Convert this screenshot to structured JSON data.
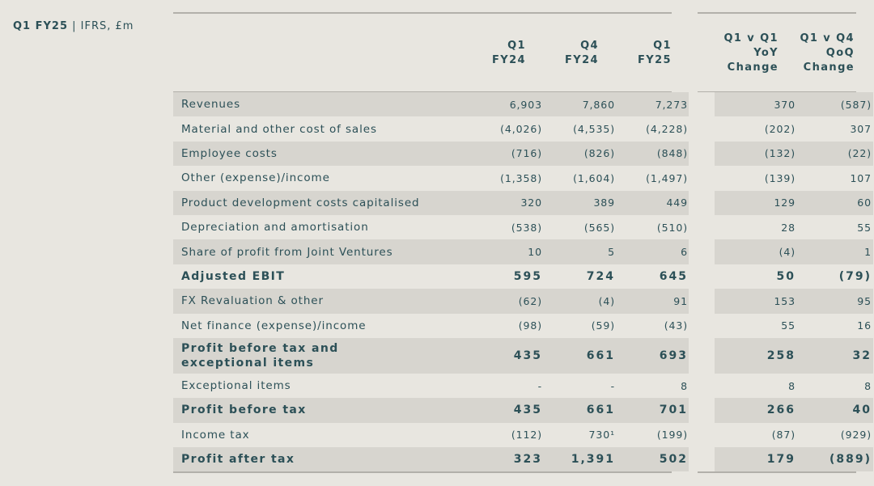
{
  "corner": {
    "bold": "Q1 FY25",
    "sep": " | ",
    "rest": "IFRS, £m"
  },
  "columns": [
    "Q1\nFY24",
    "Q4\nFY24",
    "Q1\nFY25",
    "Q1 v Q1\nYoY\nChange",
    "Q1 v Q4\nQoQ\nChange"
  ],
  "rows": [
    {
      "label": "Revenues",
      "v": [
        "6,903",
        "7,860",
        "7,273",
        "370",
        "(587)"
      ],
      "bold": false,
      "shade": true
    },
    {
      "label": "Material and other cost of sales",
      "v": [
        "(4,026)",
        "(4,535)",
        "(4,228)",
        "(202)",
        "307"
      ],
      "bold": false,
      "shade": false
    },
    {
      "label": "Employee costs",
      "v": [
        "(716)",
        "(826)",
        "(848)",
        "(132)",
        "(22)"
      ],
      "bold": false,
      "shade": true
    },
    {
      "label": "Other (expense)/income",
      "v": [
        "(1,358)",
        "(1,604)",
        "(1,497)",
        "(139)",
        "107"
      ],
      "bold": false,
      "shade": false
    },
    {
      "label": "Product development costs capitalised",
      "v": [
        "320",
        "389",
        "449",
        "129",
        "60"
      ],
      "bold": false,
      "shade": true
    },
    {
      "label": "Depreciation and amortisation",
      "v": [
        "(538)",
        "(565)",
        "(510)",
        "28",
        "55"
      ],
      "bold": false,
      "shade": false
    },
    {
      "label": "Share of profit from Joint Ventures",
      "v": [
        "10",
        "5",
        "6",
        "(4)",
        "1"
      ],
      "bold": false,
      "shade": true
    },
    {
      "label": "Adjusted EBIT",
      "v": [
        "595",
        "724",
        "645",
        "50",
        "(79)"
      ],
      "bold": true,
      "shade": false
    },
    {
      "label": "FX Revaluation & other",
      "v": [
        "(62)",
        "(4)",
        "91",
        "153",
        "95"
      ],
      "bold": false,
      "shade": true
    },
    {
      "label": "Net finance (expense)/income",
      "v": [
        "(98)",
        "(59)",
        "(43)",
        "55",
        "16"
      ],
      "bold": false,
      "shade": false
    },
    {
      "label": "Profit before tax and exceptional items",
      "v": [
        "435",
        "661",
        "693",
        "258",
        "32"
      ],
      "bold": true,
      "shade": true,
      "tall": true
    },
    {
      "label": "Exceptional items",
      "v": [
        "-",
        "-",
        "8",
        "8",
        "8"
      ],
      "bold": false,
      "shade": false
    },
    {
      "label": "Profit before tax",
      "v": [
        "435",
        "661",
        "701",
        "266",
        "40"
      ],
      "bold": true,
      "shade": true
    },
    {
      "label": "Income tax",
      "v": [
        "(112)",
        "730¹",
        "(199)",
        "(87)",
        "(929)"
      ],
      "bold": false,
      "shade": false
    },
    {
      "label": "Profit after tax",
      "v": [
        "323",
        "1,391",
        "502",
        "179",
        "(889)"
      ],
      "bold": true,
      "shade": true
    }
  ]
}
